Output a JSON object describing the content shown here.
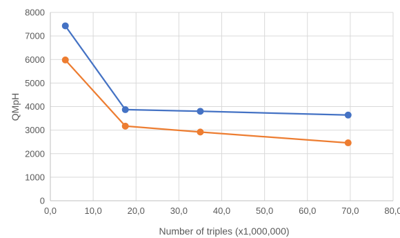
{
  "chart_data": {
    "type": "scatter",
    "xlabel": "Number of triples (x1,000,000)",
    "ylabel": "QMpH",
    "xlim": [
      0,
      80
    ],
    "ylim": [
      0,
      8000
    ],
    "x_ticks": [
      "0,0",
      "10,0",
      "20,0",
      "30,0",
      "40,0",
      "50,0",
      "60,0",
      "70,0",
      "80,0"
    ],
    "y_ticks": [
      "0",
      "1000",
      "2000",
      "3000",
      "4000",
      "5000",
      "6000",
      "7000",
      "8000"
    ],
    "x_tick_values": [
      0,
      10,
      20,
      30,
      40,
      50,
      60,
      70,
      80
    ],
    "y_tick_values": [
      0,
      1000,
      2000,
      3000,
      4000,
      5000,
      6000,
      7000,
      8000
    ],
    "grid": "vertical and horizontal",
    "legend": "none",
    "series": [
      {
        "color": "#4472C4",
        "points": [
          {
            "x": 3.5,
            "y": 7430
          },
          {
            "x": 17.5,
            "y": 3870
          },
          {
            "x": 35,
            "y": 3800
          },
          {
            "x": 69.5,
            "y": 3640
          }
        ]
      },
      {
        "color": "#ED7D31",
        "points": [
          {
            "x": 3.5,
            "y": 5980
          },
          {
            "x": 17.5,
            "y": 3170
          },
          {
            "x": 35,
            "y": 2920
          },
          {
            "x": 69.5,
            "y": 2460
          }
        ]
      }
    ]
  }
}
